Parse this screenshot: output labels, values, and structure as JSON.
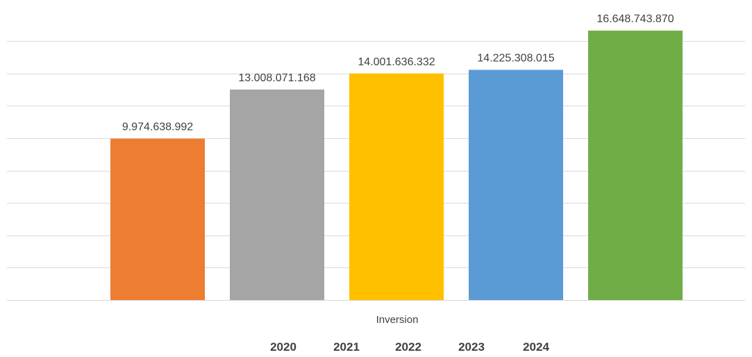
{
  "chart_data": {
    "type": "bar",
    "title": "",
    "xlabel": "Inversion",
    "ylabel": "",
    "categories": [
      "2020",
      "2021",
      "2022",
      "2023",
      "2024"
    ],
    "values": [
      9974638992,
      13008071168,
      14001636332,
      14225308015,
      16648743870
    ],
    "value_labels": [
      "9.974.638.992",
      "13.008.071.168",
      "14.001.636.332",
      "14.225.308.015",
      "16.648.743.870"
    ],
    "colors": [
      "#ED7D31",
      "#A5A5A5",
      "#FFC000",
      "#5B9BD5",
      "#70AD47"
    ],
    "ylim": [
      0,
      16000000000
    ],
    "y_gridline_step": 2000000000,
    "y_tick_labels_shown": false,
    "grid": true,
    "legend_position": "bottom"
  }
}
